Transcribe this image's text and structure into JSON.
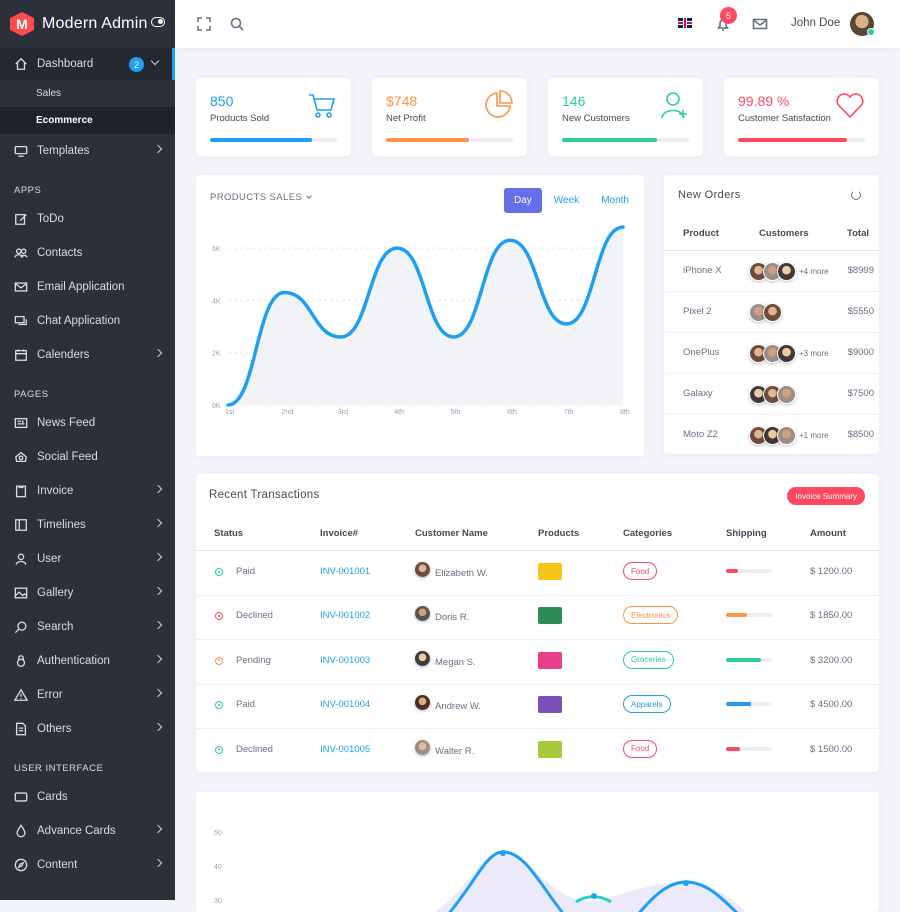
{
  "brand": {
    "name": "Modern Admin",
    "logo_letter": "M"
  },
  "sidebar": {
    "dashboard": {
      "label": "Dashboard",
      "badge": "2"
    },
    "dashboard_sub": [
      "Sales",
      "Ecommerce"
    ],
    "templates": "Templates",
    "sections": {
      "apps": "APPS",
      "pages": "PAGES",
      "ui": "USER INTERFACE"
    },
    "apps": [
      "ToDo",
      "Contacts",
      "Email Application",
      "Chat Application",
      "Calenders"
    ],
    "pages": [
      "News Feed",
      "Social Feed",
      "Invoice",
      "Timelines",
      "User",
      "Gallery",
      "Search",
      "Authentication",
      "Error",
      "Others"
    ],
    "ui": [
      "Cards",
      "Advance Cards",
      "Content"
    ]
  },
  "header": {
    "user_name": "John Doe",
    "notification_count": "5"
  },
  "stats": [
    {
      "value": "850",
      "label": "Products Sold",
      "color": "#1e9ff2",
      "progress": 0.8,
      "icon": "cart-icon"
    },
    {
      "value": "$748",
      "label": "Net Profit",
      "color": "#ff9149",
      "progress": 0.65,
      "icon": "pie-chart-icon"
    },
    {
      "value": "146",
      "label": "New Customers",
      "color": "#28d094",
      "progress": 0.75,
      "icon": "user-plus-icon"
    },
    {
      "value": "99.89 %",
      "label": "Customer Satisfaction",
      "color": "#ff4961",
      "progress": 0.86,
      "icon": "heart-icon"
    }
  ],
  "products_sales": {
    "title": "PRODUCTS SALES",
    "tabs": [
      "Day",
      "Week",
      "Month"
    ],
    "active_tab": "Day"
  },
  "chart_data": {
    "type": "line",
    "title": "PRODUCTS SALES",
    "categories": [
      "1st",
      "2nd",
      "3rd",
      "4th",
      "5th",
      "6th",
      "7th",
      "8th"
    ],
    "y_ticks": [
      "0K",
      "2K",
      "4K",
      "6K"
    ],
    "ylim": [
      0,
      6500
    ],
    "values": [
      0,
      4300,
      2600,
      6000,
      2600,
      6300,
      3100,
      6800
    ],
    "color": "#1e9ff2",
    "grid": true
  },
  "new_orders": {
    "title": "New Orders",
    "columns": [
      "Product",
      "Customers",
      "Total"
    ],
    "rows": [
      {
        "product": "iPhone X",
        "more": "+4 more",
        "total": "$8999"
      },
      {
        "product": "Pixel 2",
        "more": "",
        "total": "$5550"
      },
      {
        "product": "OnePlus",
        "more": "+3 more",
        "total": "$9000"
      },
      {
        "product": "Galaxy",
        "more": "",
        "total": "$7500"
      },
      {
        "product": "Moto Z2",
        "more": "+1 more",
        "total": "$8500"
      }
    ]
  },
  "transactions": {
    "title": "Recent Transactions",
    "summary_button": "Invoice Summary",
    "columns": [
      "Status",
      "Invoice#",
      "Customer Name",
      "Products",
      "Categories",
      "Shipping",
      "Amount"
    ],
    "rows": [
      {
        "status": "Paid",
        "status_color": "#28d094",
        "invoice": "INV-001001",
        "customer": "Elizabeth W.",
        "category": "Food",
        "cat_color": "#ff4961",
        "shipping": 0.25,
        "ship_color": "#ff4961",
        "amount": "$ 1200.00",
        "prod_color": "#f5c518"
      },
      {
        "status": "Declined",
        "status_color": "#ff4961",
        "invoice": "INV-001002",
        "customer": "Doris R.",
        "category": "Electronics",
        "cat_color": "#ff9149",
        "shipping": 0.45,
        "ship_color": "#ff9149",
        "amount": "$ 1850.00",
        "prod_color": "#2e8b57"
      },
      {
        "status": "Pending",
        "status_color": "#ff9149",
        "invoice": "INV-001003",
        "customer": "Megan S.",
        "category": "Groceries",
        "cat_color": "#28d094",
        "shipping": 0.75,
        "ship_color": "#28d094",
        "amount": "$ 3200.00",
        "prod_color": "#e83e8c"
      },
      {
        "status": "Paid",
        "status_color": "#28d094",
        "invoice": "INV-001004",
        "customer": "Andrew W.",
        "category": "Apparels",
        "cat_color": "#1e9ff2",
        "shipping": 0.55,
        "ship_color": "#1e9ff2",
        "amount": "$ 4500.00",
        "prod_color": "#7b4fb8"
      },
      {
        "status": "Declined",
        "status_color": "#28d094",
        "invoice": "INV-001005",
        "customer": "Walter R.",
        "category": "Food",
        "cat_color": "#ff4961",
        "shipping": 0.3,
        "ship_color": "#ff4961",
        "amount": "$ 1500.00",
        "prod_color": "#a6c83a"
      }
    ]
  },
  "bottom_chart": {
    "y_ticks": [
      "50",
      "40",
      "30"
    ]
  }
}
